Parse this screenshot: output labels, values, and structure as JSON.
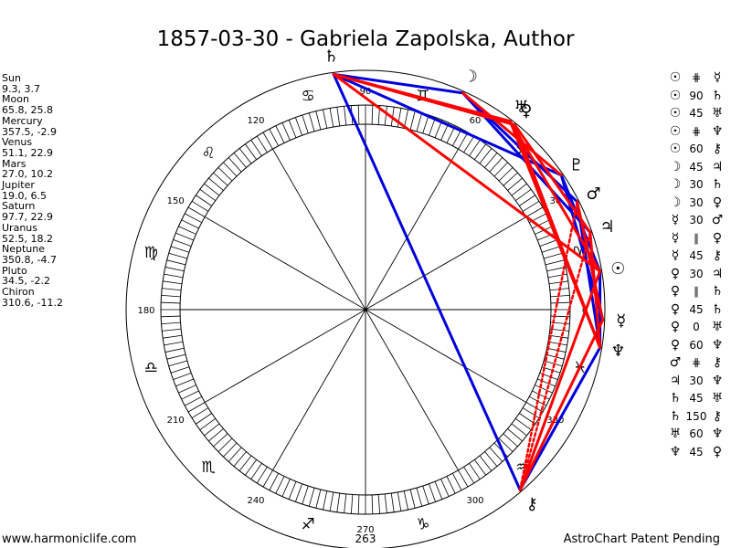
{
  "title": "1857-03-30 - Gabriela Zapolska, Author",
  "footer": {
    "left": "www.harmoniclife.com",
    "right": "AstroChart Patent Pending",
    "center": "263"
  },
  "planet_list": [
    {
      "name": "Sun",
      "coords": "9.3, 3.7"
    },
    {
      "name": "Moon",
      "coords": "65.8, 25.8"
    },
    {
      "name": "Mercury",
      "coords": "357.5, -2.9"
    },
    {
      "name": "Venus",
      "coords": "51.1, 22.9"
    },
    {
      "name": "Mars",
      "coords": "27.0, 10.2"
    },
    {
      "name": "Jupiter",
      "coords": "19.0, 6.5"
    },
    {
      "name": "Saturn",
      "coords": "97.7, 22.9"
    },
    {
      "name": "Uranus",
      "coords": "52.5, 18.2"
    },
    {
      "name": "Neptune",
      "coords": "350.8, -4.7"
    },
    {
      "name": "Pluto",
      "coords": "34.5, -2.2"
    },
    {
      "name": "Chiron",
      "coords": "310.6, -11.2"
    }
  ],
  "aspect_list": [
    {
      "p1": "☉",
      "aspect": "⋕",
      "p2": "☿"
    },
    {
      "p1": "☉",
      "aspect": "90",
      "p2": "♄"
    },
    {
      "p1": "☉",
      "aspect": "45",
      "p2": "♅"
    },
    {
      "p1": "☉",
      "aspect": "⋕",
      "p2": "♆"
    },
    {
      "p1": "☉",
      "aspect": "60",
      "p2": "⚷"
    },
    {
      "p1": "☽",
      "aspect": "45",
      "p2": "♃"
    },
    {
      "p1": "☽",
      "aspect": "30",
      "p2": "♄"
    },
    {
      "p1": "☽",
      "aspect": "30",
      "p2": "♀"
    },
    {
      "p1": "☿",
      "aspect": "30",
      "p2": "♂"
    },
    {
      "p1": "☿",
      "aspect": "∥",
      "p2": "♀"
    },
    {
      "p1": "☿",
      "aspect": "45",
      "p2": "⚷"
    },
    {
      "p1": "♀",
      "aspect": "30",
      "p2": "♃"
    },
    {
      "p1": "♀",
      "aspect": "∥",
      "p2": "♄"
    },
    {
      "p1": "♀",
      "aspect": "45",
      "p2": "♄"
    },
    {
      "p1": "♀",
      "aspect": "0",
      "p2": "♅"
    },
    {
      "p1": "♀",
      "aspect": "60",
      "p2": "♆"
    },
    {
      "p1": "♂",
      "aspect": "⋕",
      "p2": "⚷"
    },
    {
      "p1": "♃",
      "aspect": "30",
      "p2": "♆"
    },
    {
      "p1": "♄",
      "aspect": "45",
      "p2": "♅"
    },
    {
      "p1": "♄",
      "aspect": "150",
      "p2": "⚷"
    },
    {
      "p1": "♅",
      "aspect": "60",
      "p2": "♆"
    },
    {
      "p1": "♆",
      "aspect": "45",
      "p2": "♀"
    }
  ],
  "chart_data": {
    "type": "astrological-wheel",
    "degree_labels": [
      "0",
      "30",
      "60",
      "90",
      "120",
      "150",
      "180",
      "210",
      "240",
      "270",
      "300",
      "330"
    ],
    "zodiac_signs": [
      "♈",
      "♉",
      "♊",
      "♋",
      "♌",
      "♍",
      "♎",
      "♏",
      "♐",
      "♑",
      "♒",
      "♓"
    ],
    "planets": [
      {
        "glyph": "☉",
        "longitude": 9.3
      },
      {
        "glyph": "☽",
        "longitude": 65.8
      },
      {
        "glyph": "☿",
        "longitude": 357.5
      },
      {
        "glyph": "♀",
        "longitude": 51.1
      },
      {
        "glyph": "♂",
        "longitude": 27.0
      },
      {
        "glyph": "♃",
        "longitude": 19.0
      },
      {
        "glyph": "♄",
        "longitude": 97.7
      },
      {
        "glyph": "♅",
        "longitude": 52.5
      },
      {
        "glyph": "♆",
        "longitude": 350.8
      },
      {
        "glyph": "♇",
        "longitude": 34.5
      },
      {
        "glyph": "⚷",
        "longitude": 310.6
      }
    ],
    "aspect_lines": [
      {
        "a": 97.7,
        "b": 65.8,
        "color": "#0000dd"
      },
      {
        "a": 97.7,
        "b": 34.5,
        "color": "#0000dd"
      },
      {
        "a": 97.7,
        "b": 310.6,
        "color": "#0000dd"
      },
      {
        "a": 65.8,
        "b": 27.0,
        "color": "#0000dd"
      },
      {
        "a": 65.8,
        "b": 19.0,
        "color": "#0000dd"
      },
      {
        "a": 34.5,
        "b": 357.5,
        "color": "#0000dd"
      },
      {
        "a": 34.5,
        "b": 9.3,
        "color": "#0000dd"
      },
      {
        "a": 27.0,
        "b": 350.8,
        "color": "#0000dd"
      },
      {
        "a": 9.3,
        "b": 350.8,
        "color": "#0000dd"
      },
      {
        "a": 310.6,
        "b": 350.8,
        "color": "#0000dd"
      },
      {
        "a": 97.7,
        "b": 9.3,
        "color": "#ff0000"
      },
      {
        "a": 97.7,
        "b": 52.5,
        "color": "#ff0000"
      },
      {
        "a": 97.7,
        "b": 51.1,
        "color": "#ff0000"
      },
      {
        "a": 65.8,
        "b": 34.5,
        "color": "#ff0000"
      },
      {
        "a": 51.1,
        "b": 19.0,
        "color": "#ff0000"
      },
      {
        "a": 51.1,
        "b": 350.8,
        "color": "#ff0000"
      },
      {
        "a": 52.5,
        "b": 350.8,
        "color": "#ff0000"
      },
      {
        "a": 27.0,
        "b": 357.5,
        "color": "#ff0000"
      },
      {
        "a": 19.0,
        "b": 350.8,
        "color": "#ff0000"
      },
      {
        "a": 9.3,
        "b": 52.5,
        "color": "#ff0000"
      },
      {
        "a": 357.5,
        "b": 310.6,
        "color": "#ff0000"
      },
      {
        "a": 9.3,
        "b": 310.6,
        "color": "#ff0000"
      },
      {
        "a": 19.0,
        "b": 310.6,
        "color": "#ff0000",
        "dashed": true
      },
      {
        "a": 27.0,
        "b": 310.6,
        "color": "#ff0000",
        "dashed": true
      }
    ]
  }
}
